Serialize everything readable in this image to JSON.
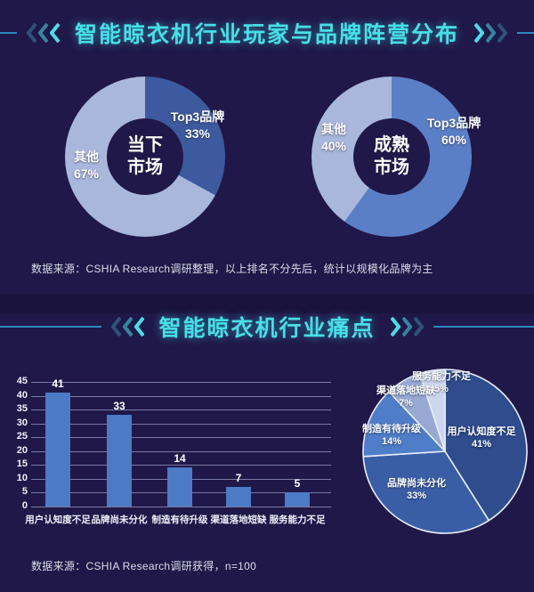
{
  "colors": {
    "background": "#201849",
    "title_cyan": "#45e0e6",
    "header_line": "#2f9bd0",
    "bar_fill": "#4c7ac5",
    "donut_dark_current": "#3d5a9e",
    "donut_dark_mature": "#5b7fc6",
    "donut_light": "#a9b7dc",
    "pie_slice_colors": [
      "#2f4c8d",
      "#3a5ea6",
      "#4f7dc8",
      "#97a9d2",
      "#ccd6ee"
    ]
  },
  "section1": {
    "title": "智能晾衣机行业玩家与品牌阵营分布",
    "source": "数据来源：CSHIA Research调研整理，以上排名不分先后，统计以规模化品牌为主"
  },
  "section2": {
    "title": "智能晾衣机行业痛点",
    "source": "数据来源：CSHIA Research调研获得，n=100"
  },
  "chart_data": [
    {
      "type": "pie",
      "subtype": "donut",
      "title": "当下市场",
      "labels": [
        "Top3品牌",
        "其他"
      ],
      "values": [
        33,
        67
      ],
      "pcts": [
        "33%",
        "67%"
      ],
      "colors": [
        "#3d5a9e",
        "#a9b7dc"
      ],
      "start_angle_deg": 0,
      "direction": "clockwise",
      "legend_position": "on-slice"
    },
    {
      "type": "pie",
      "subtype": "donut",
      "title": "成熟市场",
      "labels": [
        "Top3品牌",
        "其他"
      ],
      "values": [
        60,
        40
      ],
      "pcts": [
        "60%",
        "40%"
      ],
      "colors": [
        "#5b7fc6",
        "#a9b7dc"
      ],
      "start_angle_deg": 0,
      "direction": "clockwise",
      "legend_position": "on-slice"
    },
    {
      "type": "bar",
      "categories": [
        "用户认知度不足",
        "品牌尚未分化",
        "制造有待升级",
        "渠道落地短缺",
        "服务能力不足"
      ],
      "values": [
        41,
        33,
        14,
        7,
        5
      ],
      "title": "",
      "xlabel": "",
      "ylabel": "",
      "ylim": [
        0,
        45
      ],
      "yticks": [
        0,
        5,
        10,
        15,
        20,
        25,
        30,
        35,
        40,
        45
      ],
      "grid": true,
      "bar_color": "#4c7ac5"
    },
    {
      "type": "pie",
      "title": "",
      "labels": [
        "用户认知度不足",
        "品牌尚未分化",
        "制造有待升级",
        "渠道落地短缺",
        "服务能力不足"
      ],
      "values": [
        41,
        33,
        14,
        7,
        5
      ],
      "pcts": [
        "41%",
        "33%",
        "14%",
        "7%",
        "5%"
      ],
      "colors": [
        "#2f4c8d",
        "#3a5ea6",
        "#4f7dc8",
        "#97a9d2",
        "#ccd6ee"
      ],
      "start_angle_deg": 0,
      "direction": "clockwise",
      "legend_position": "on-slice"
    }
  ]
}
